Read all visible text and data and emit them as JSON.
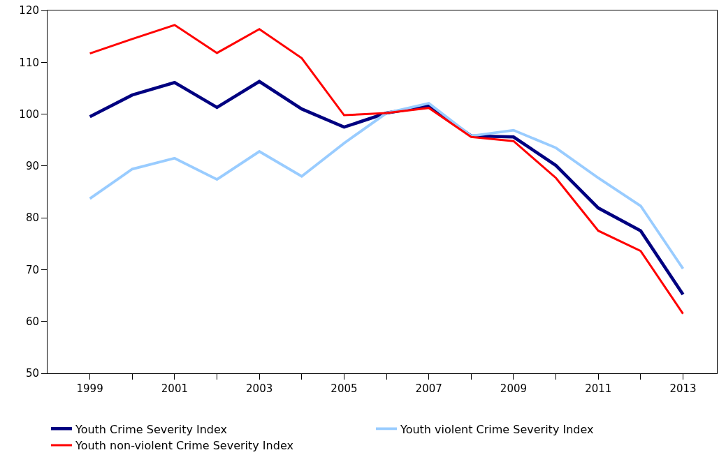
{
  "chart_data": {
    "type": "line",
    "x": [
      1999,
      2000,
      2001,
      2002,
      2003,
      2004,
      2005,
      2006,
      2007,
      2008,
      2009,
      2010,
      2011,
      2012,
      2013
    ],
    "series": [
      {
        "name": "Youth Crime Severity Index",
        "color": "#000080",
        "values": [
          99.5,
          103.7,
          106.1,
          101.3,
          106.3,
          101.0,
          97.5,
          100.2,
          101.6,
          95.8,
          95.6,
          90.1,
          81.9,
          77.5,
          65.2
        ]
      },
      {
        "name": "Youth violent Crime Severity Index",
        "color": "#99ccff",
        "values": [
          83.7,
          89.4,
          91.5,
          87.4,
          92.8,
          88.0,
          94.4,
          100.2,
          102.1,
          95.8,
          96.9,
          93.5,
          87.7,
          82.3,
          70.2
        ]
      },
      {
        "name": "Youth non-violent Crime Severity Index",
        "color": "#ff0000",
        "values": [
          111.7,
          114.5,
          117.2,
          111.8,
          116.4,
          110.8,
          99.8,
          100.2,
          101.2,
          95.6,
          94.8,
          87.7,
          77.5,
          73.6,
          61.5
        ]
      }
    ],
    "xlim": [
      1998,
      2013.8
    ],
    "xticks": [
      1999,
      {
        "value": 2000,
        "label": null
      },
      2001,
      {
        "value": 2002,
        "label": null
      },
      2003,
      {
        "value": 2004,
        "label": null
      },
      2005,
      {
        "value": 2006,
        "label": null
      },
      2007,
      {
        "value": 2008,
        "label": null
      },
      2009,
      {
        "value": 2010,
        "label": null
      },
      2011,
      {
        "value": 2012,
        "label": null
      },
      2013
    ],
    "ylim": [
      50,
      120
    ],
    "yticks": [
      50,
      60,
      70,
      80,
      90,
      100,
      110,
      120
    ],
    "legend": "bottom",
    "marker": "none",
    "line_style": "solid"
  }
}
